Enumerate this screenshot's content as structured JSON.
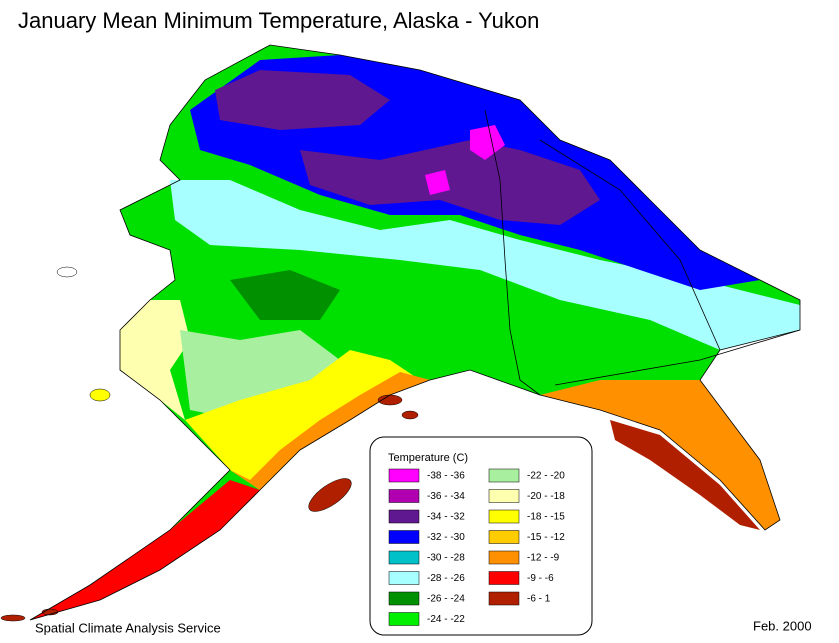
{
  "title": "January Mean Minimum Temperature, Alaska - Yukon",
  "legend": {
    "title": "Temperature (C)",
    "items": [
      {
        "label": "-38 - -36",
        "color": "#ff00ff"
      },
      {
        "label": "-36 - -34",
        "color": "#b000b0"
      },
      {
        "label": "-34 - -32",
        "color": "#601890"
      },
      {
        "label": "-32 - -30",
        "color": "#0000ff"
      },
      {
        "label": "-30 - -28",
        "color": "#00c0c8"
      },
      {
        "label": "-28 - -26",
        "color": "#a8ffff"
      },
      {
        "label": "-26 - -24",
        "color": "#009000"
      },
      {
        "label": "-24 - -22",
        "color": "#00f000"
      },
      {
        "label": "-22 - -20",
        "color": "#a8f0a0"
      },
      {
        "label": "-20 - -18",
        "color": "#ffffb0"
      },
      {
        "label": "-18 - -15",
        "color": "#ffff00"
      },
      {
        "label": "-15 - -12",
        "color": "#ffcc00"
      },
      {
        "label": "-12 - -9",
        "color": "#ff9000"
      },
      {
        "label": "-9 - -6",
        "color": "#ff0000"
      },
      {
        "label": "-6 - 1",
        "color": "#b02000"
      }
    ]
  },
  "footer": {
    "left": "Spatial Climate Analysis Service",
    "right": "Feb. 2000"
  }
}
